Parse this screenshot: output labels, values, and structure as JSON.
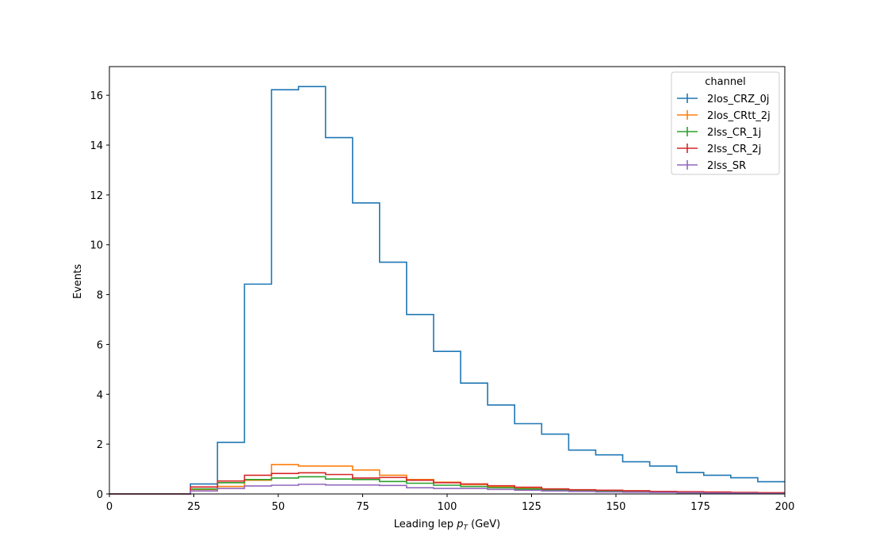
{
  "chart_data": {
    "type": "histogram-step",
    "xlabel_prefix": "Leading lep ",
    "xlabel_symbol": "p",
    "xlabel_subscript": "T",
    "xlabel_suffix": " (GeV)",
    "ylabel": "Events",
    "xlim": [
      0,
      200
    ],
    "ylim": [
      0,
      17.15
    ],
    "xticks": [
      0,
      25,
      50,
      75,
      100,
      125,
      150,
      175,
      200
    ],
    "yticks": [
      0,
      2,
      4,
      6,
      8,
      10,
      12,
      14,
      16
    ],
    "grid": false,
    "legend_title": "channel",
    "legend_position": "top-right",
    "bin_edges": [
      0,
      8,
      16,
      24,
      32,
      40,
      48,
      56,
      64,
      72,
      80,
      88,
      96,
      104,
      112,
      120,
      128,
      136,
      144,
      152,
      160,
      168,
      176,
      184,
      192,
      200
    ],
    "series": [
      {
        "name": "2los_CRZ_0j",
        "color": "#1f77b4",
        "values": [
          0,
          0,
          0,
          0.4,
          2.07,
          8.42,
          16.22,
          16.35,
          14.3,
          11.68,
          9.3,
          7.2,
          5.72,
          4.45,
          3.57,
          2.82,
          2.4,
          1.76,
          1.57,
          1.29,
          1.12,
          0.86,
          0.75,
          0.65,
          0.49
        ]
      },
      {
        "name": "2los_CRtt_2j",
        "color": "#ff7f0e",
        "values": [
          0,
          0,
          0,
          0.18,
          0.3,
          0.55,
          1.18,
          1.12,
          1.12,
          0.96,
          0.75,
          0.58,
          0.47,
          0.38,
          0.3,
          0.23,
          0.2,
          0.13,
          0.1,
          0.1,
          0.08,
          0.06,
          0.04,
          0.03,
          0.02
        ]
      },
      {
        "name": "2lss_CR_1j",
        "color": "#2ca02c",
        "values": [
          0,
          0,
          0,
          0.2,
          0.45,
          0.58,
          0.64,
          0.69,
          0.6,
          0.58,
          0.5,
          0.43,
          0.35,
          0.3,
          0.25,
          0.2,
          0.15,
          0.12,
          0.1,
          0.09,
          0.07,
          0.05,
          0.04,
          0.03,
          0.02
        ]
      },
      {
        "name": "2lss_CR_2j",
        "color": "#d62728",
        "values": [
          0,
          0,
          0,
          0.28,
          0.52,
          0.75,
          0.82,
          0.85,
          0.78,
          0.64,
          0.66,
          0.55,
          0.45,
          0.4,
          0.33,
          0.27,
          0.2,
          0.17,
          0.15,
          0.13,
          0.1,
          0.09,
          0.08,
          0.06,
          0.05
        ]
      },
      {
        "name": "2lss_SR",
        "color": "#9467bd",
        "values": [
          0,
          0,
          0,
          0.12,
          0.22,
          0.32,
          0.35,
          0.39,
          0.36,
          0.36,
          0.34,
          0.25,
          0.22,
          0.22,
          0.18,
          0.15,
          0.12,
          0.1,
          0.08,
          0.07,
          0.06,
          0.05,
          0.04,
          0.03,
          0.02
        ]
      }
    ]
  }
}
